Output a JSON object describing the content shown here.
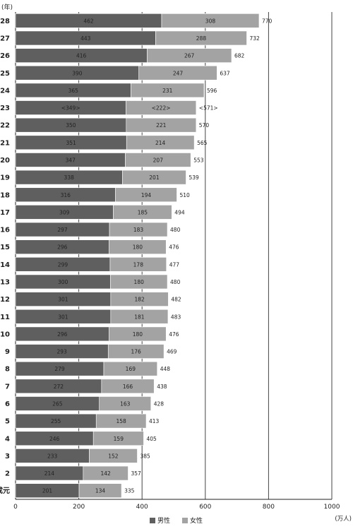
{
  "chart_data": {
    "type": "bar",
    "orientation": "horizontal",
    "stacked": true,
    "ylabel": "(年)",
    "xlabel": "(万人)",
    "xlim": [
      0,
      1000
    ],
    "xticks": [
      0,
      200,
      400,
      600,
      800,
      1000
    ],
    "grid": true,
    "legend_position": "bottom",
    "categories": [
      "28",
      "27",
      "26",
      "25",
      "24",
      "23",
      "22",
      "21",
      "20",
      "19",
      "18",
      "17",
      "16",
      "15",
      "14",
      "13",
      "12",
      "11",
      "10",
      "9",
      "8",
      "7",
      "6",
      "5",
      "4",
      "3",
      "2",
      "成元"
    ],
    "series": [
      {
        "name": "男性",
        "color": "#5f5f5f",
        "values": [
          462,
          443,
          416,
          390,
          365,
          349,
          350,
          351,
          347,
          338,
          316,
          309,
          297,
          296,
          299,
          300,
          301,
          301,
          296,
          293,
          279,
          272,
          265,
          255,
          246,
          233,
          214,
          201
        ],
        "labels": [
          "462",
          "443",
          "416",
          "390",
          "365",
          "<349>",
          "350",
          "351",
          "347",
          "338",
          "316",
          "309",
          "297",
          "296",
          "299",
          "300",
          "301",
          "301",
          "296",
          "293",
          "279",
          "272",
          "265",
          "255",
          "246",
          "233",
          "214",
          "201"
        ]
      },
      {
        "name": "女性",
        "color": "#a3a3a3",
        "values": [
          308,
          288,
          267,
          247,
          231,
          222,
          221,
          214,
          207,
          201,
          194,
          185,
          183,
          180,
          178,
          180,
          182,
          181,
          180,
          176,
          169,
          166,
          163,
          158,
          159,
          152,
          142,
          134
        ],
        "labels": [
          "308",
          "288",
          "267",
          "247",
          "231",
          "<222>",
          "221",
          "214",
          "207",
          "201",
          "194",
          "185",
          "183",
          "180",
          "178",
          "180",
          "182",
          "181",
          "180",
          "176",
          "169",
          "166",
          "163",
          "158",
          "159",
          "152",
          "142",
          "134"
        ]
      }
    ],
    "totals": [
      "770",
      "732",
      "682",
      "637",
      "596",
      "<571>",
      "570",
      "565",
      "553",
      "539",
      "510",
      "494",
      "480",
      "476",
      "477",
      "480",
      "482",
      "483",
      "476",
      "469",
      "448",
      "438",
      "428",
      "413",
      "405",
      "385",
      "357",
      "335"
    ]
  }
}
